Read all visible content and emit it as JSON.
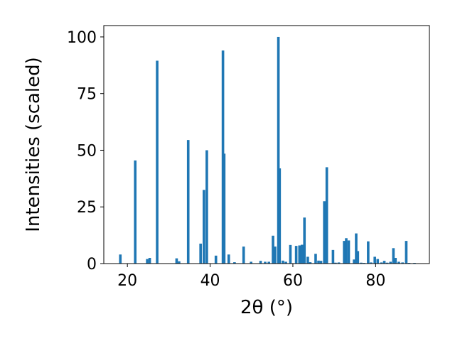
{
  "chart_data": {
    "type": "bar",
    "xlabel": "2θ (°)",
    "ylabel": "Intensities (scaled)",
    "xlim": [
      14.3,
      93.0
    ],
    "ylim": [
      0,
      105
    ],
    "grid": false,
    "bar_color": "#1f77b4",
    "xticks": [
      "20",
      "40",
      "60",
      "80"
    ],
    "yticks": [
      "0",
      "25",
      "50",
      "75",
      "100"
    ],
    "x": [
      18.3,
      21.9,
      24.8,
      25.4,
      27.2,
      31.9,
      32.5,
      34.7,
      37.7,
      38.5,
      39.2,
      41.4,
      43.1,
      43.4,
      44.5,
      45.9,
      48.1,
      49.9,
      52.2,
      53.3,
      54.2,
      55.2,
      55.7,
      56.5,
      56.8,
      57.6,
      58.3,
      59.4,
      60.8,
      61.6,
      62.2,
      62.8,
      63.6,
      64.2,
      65.5,
      66.2,
      66.8,
      67.6,
      68.2,
      69.7,
      70.3,
      71.1,
      72.4,
      72.9,
      73.5,
      74.8,
      75.3,
      75.7,
      76.5,
      77.2,
      78.2,
      78.9,
      79.8,
      80.5,
      81.4,
      82.1,
      82.8,
      83.6,
      84.3,
      84.8,
      85.6,
      86.5,
      87.4,
      88.1,
      89.4
    ],
    "values": [
      4,
      45.5,
      2,
      2.5,
      89.5,
      2.3,
      1,
      54.5,
      8.8,
      32.5,
      50,
      3.5,
      94,
      48.5,
      4,
      0.6,
      7.5,
      0.8,
      1.2,
      0.8,
      0.8,
      12.3,
      7.5,
      100,
      42,
      1.3,
      0.8,
      8.2,
      7.8,
      8,
      8.3,
      20.3,
      3,
      0.6,
      4.3,
      1.3,
      1.2,
      27.5,
      42.5,
      6,
      0.4,
      0.5,
      10,
      11.2,
      10.2,
      1.8,
      13.3,
      5.5,
      0.4,
      0.3,
      9.8,
      0.5,
      3,
      2,
      0.5,
      1.2,
      0.4,
      0.8,
      6.8,
      2.5,
      0.8,
      0.5,
      10,
      0.3,
      0.3
    ],
    "bar_width": 0.62
  }
}
